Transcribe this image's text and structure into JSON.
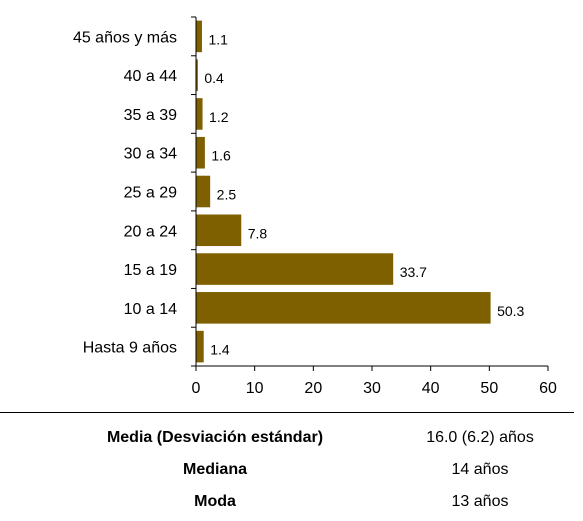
{
  "chart_data": {
    "type": "bar",
    "orientation": "horizontal",
    "categories": [
      "Hasta 9 años",
      "10 a 14",
      "15 a 19",
      "20 a 24",
      "25 a 29",
      "30 a 34",
      "35 a 39",
      "40 a 44",
      "45 años y más"
    ],
    "values": [
      1.4,
      50.3,
      33.7,
      7.8,
      2.5,
      1.6,
      1.2,
      0.4,
      1.1
    ],
    "value_labels": [
      "1.4",
      "50.3",
      "33.7",
      "7.8",
      "2.5",
      "1.6",
      "1.2",
      "0.4",
      "1.1"
    ],
    "xlim": [
      0,
      60
    ],
    "xticks": [
      0,
      10,
      20,
      30,
      40,
      50,
      60
    ],
    "grid": false,
    "bar_color": "#7F6000"
  },
  "stats": [
    {
      "label": "Media (Desviación estándar)",
      "value": "16.0 (6.2) años"
    },
    {
      "label": "Mediana",
      "value": "14 años"
    },
    {
      "label": "Moda",
      "value": "13 años"
    }
  ]
}
